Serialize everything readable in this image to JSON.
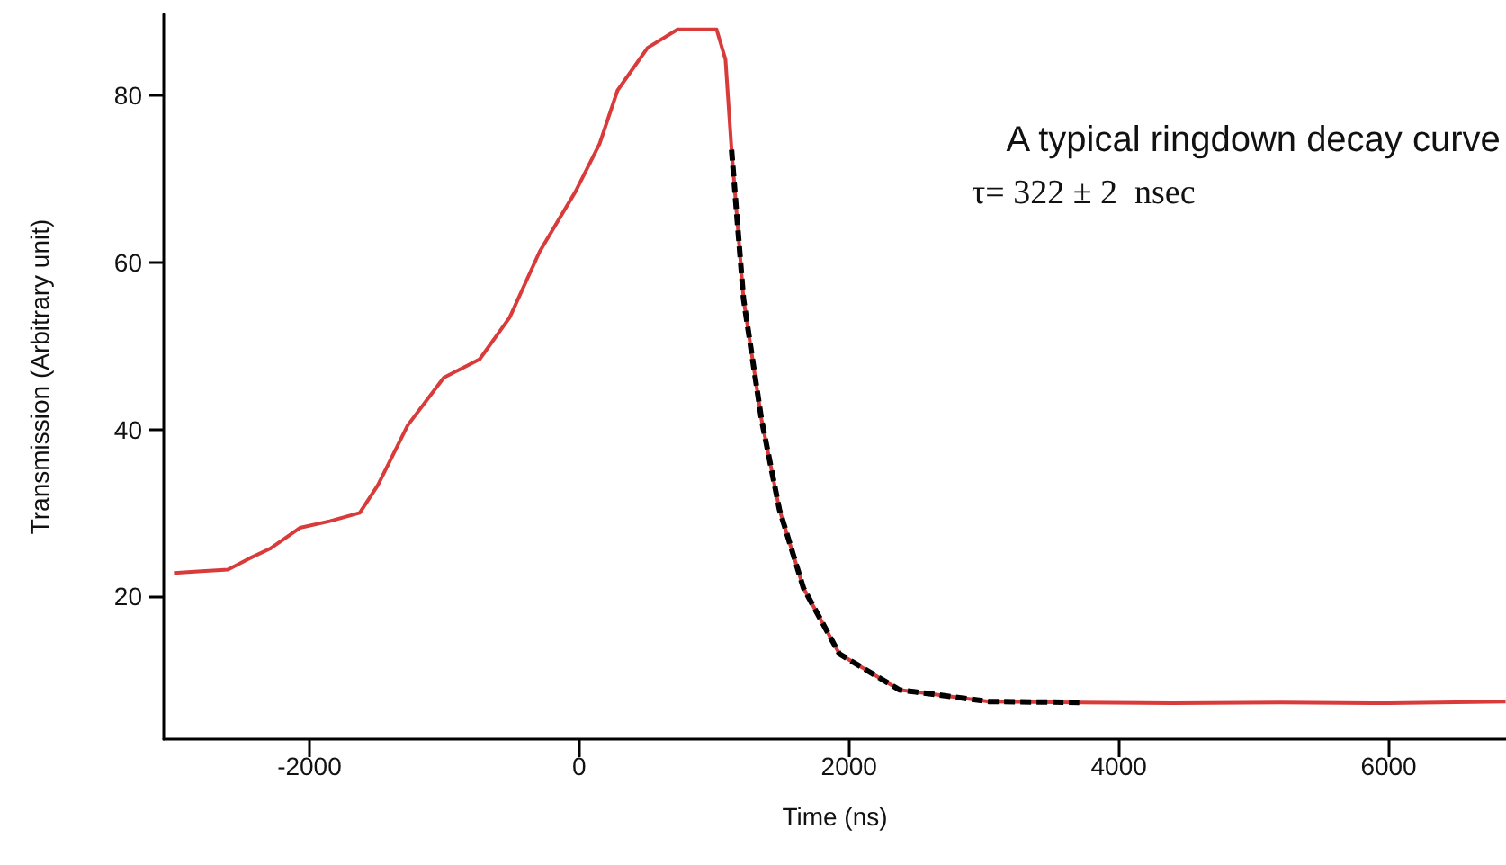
{
  "chart_data": {
    "type": "line",
    "xlabel": "Time (ns)",
    "ylabel": "Transmission (Arbitrary unit)",
    "annotations": [
      "A typical ringdown decay curve",
      "τ= 322 ± 2  nsec"
    ],
    "xlim": [
      -3080,
      6870
    ],
    "xticks": [
      -2000,
      0,
      2000,
      4000,
      6000
    ],
    "ylim": [
      2.9,
      89.7
    ],
    "yticks": [
      20,
      40,
      60,
      80
    ],
    "grid": false,
    "marker": "none",
    "series": [
      {
        "color": "#d93a3a",
        "line_style": "solid",
        "x": [
          -3004,
          -2800,
          -2604,
          -2450,
          -2293,
          -2071,
          -1850,
          -1627,
          -1493,
          -1271,
          -1004,
          -738,
          -516,
          -293,
          -27,
          151,
          284,
          507,
          729,
          1018,
          1084,
          1129,
          1218,
          1351,
          1484,
          1662,
          1929,
          2373,
          3040,
          3700,
          4400,
          5200,
          6000,
          6867
        ],
        "values": [
          22.8,
          23.0,
          23.2,
          24.5,
          25.7,
          28.2,
          29.0,
          30.0,
          33.3,
          40.5,
          46.2,
          48.4,
          53.4,
          61.3,
          68.5,
          74.2,
          80.6,
          85.7,
          87.9,
          87.9,
          84.3,
          73.5,
          55.6,
          41.2,
          30.4,
          21.0,
          13.1,
          8.8,
          7.4,
          7.3,
          7.2,
          7.3,
          7.2,
          7.4
        ]
      },
      {
        "color": "#000000",
        "line_style": "dashed",
        "x": [
          1129,
          1218,
          1351,
          1484,
          1662,
          1929,
          2373,
          3040,
          3707
        ],
        "values": [
          73.5,
          55.6,
          41.2,
          30.4,
          21.0,
          13.1,
          8.8,
          7.4,
          7.3
        ]
      }
    ]
  }
}
